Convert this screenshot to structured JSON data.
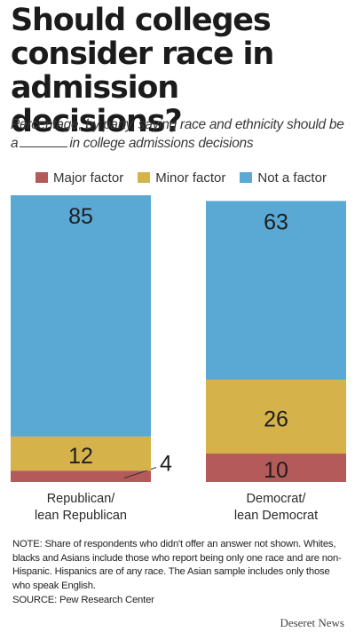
{
  "title": "Should colleges consider race in admission decisions?",
  "subtitle_before": "Percentage, by party, saying race and ethnicity should be a",
  "subtitle_after": "in college admissions decisions",
  "note": "NOTE: Share of respondents who didn't offer an answer not shown. Whites, blacks and Asians include those who report being only one race and are non-Hispanic. Hispanics are of any race. The Asian sample includes only those who speak English.",
  "source": "SOURCE: Pew Research Center",
  "credit": "Deseret News",
  "colors": {
    "major": "#b55a5a",
    "minor": "#d6b24a",
    "not": "#5aa9d4"
  },
  "chart_data": {
    "type": "bar",
    "stacked": true,
    "categories": [
      "Republican/\nlean Republican",
      "Democrat/\nlean Democrat"
    ],
    "series": [
      {
        "name": "Major factor",
        "values": [
          4,
          10
        ]
      },
      {
        "name": "Minor factor",
        "values": [
          12,
          26
        ]
      },
      {
        "name": "Not a factor",
        "values": [
          85,
          63
        ]
      }
    ],
    "ylim": [
      0,
      101
    ],
    "grid": false,
    "legend": "top"
  }
}
